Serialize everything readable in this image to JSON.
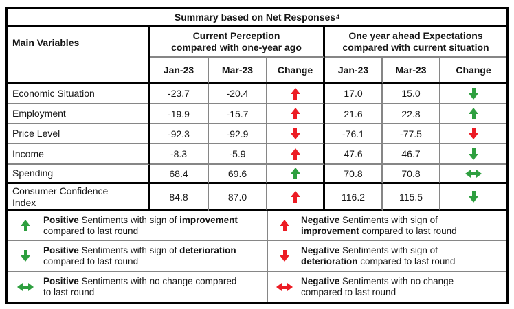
{
  "title": {
    "text": "Summary based on Net Responses",
    "superscript": "4"
  },
  "colors": {
    "positive_green": "#2e9f3f",
    "negative_red": "#ec1c24",
    "grid_gray": "#868686",
    "border_black": "#000000"
  },
  "header": {
    "main_variables": "Main Variables",
    "group1": {
      "line1": "Current Perception",
      "line2": "compared with one-year ago"
    },
    "group2": {
      "line1": "One year ahead Expectations",
      "line2": "compared with current situation"
    },
    "sub": [
      "Jan-23",
      "Mar-23",
      "Change"
    ]
  },
  "rows": [
    {
      "label": "Economic Situation",
      "p_jan": "-23.7",
      "p_mar": "-20.4",
      "p_change": {
        "dir": "up",
        "tone": "red"
      },
      "e_jan": "17.0",
      "e_mar": "15.0",
      "e_change": {
        "dir": "down",
        "tone": "green"
      }
    },
    {
      "label": "Employment",
      "p_jan": "-19.9",
      "p_mar": "-15.7",
      "p_change": {
        "dir": "up",
        "tone": "red"
      },
      "e_jan": "21.6",
      "e_mar": "22.8",
      "e_change": {
        "dir": "up",
        "tone": "green"
      }
    },
    {
      "label": "Price Level",
      "p_jan": "-92.3",
      "p_mar": "-92.9",
      "p_change": {
        "dir": "down",
        "tone": "red"
      },
      "e_jan": "-76.1",
      "e_mar": "-77.5",
      "e_change": {
        "dir": "down",
        "tone": "red"
      }
    },
    {
      "label": "Income",
      "p_jan": "-8.3",
      "p_mar": "-5.9",
      "p_change": {
        "dir": "up",
        "tone": "red"
      },
      "e_jan": "47.6",
      "e_mar": "46.7",
      "e_change": {
        "dir": "down",
        "tone": "green"
      }
    },
    {
      "label": "Spending",
      "p_jan": "68.4",
      "p_mar": "69.6",
      "p_change": {
        "dir": "up",
        "tone": "green"
      },
      "e_jan": "70.8",
      "e_mar": "70.8",
      "e_change": {
        "dir": "lr",
        "tone": "green"
      }
    },
    {
      "label": "Consumer Confidence\nIndex",
      "p_jan": "84.8",
      "p_mar": "87.0",
      "p_change": {
        "dir": "up",
        "tone": "red"
      },
      "e_jan": "116.2",
      "e_mar": "115.5",
      "e_change": {
        "dir": "down",
        "tone": "green"
      }
    }
  ],
  "legend": {
    "left": [
      {
        "arrow": {
          "dir": "up",
          "tone": "green"
        },
        "l1b": "Positive",
        "l1t": " Sentiments with sign of ",
        "l1b2": "improvement",
        "l2b": "",
        "l2t": "compared to last round"
      },
      {
        "arrow": {
          "dir": "down",
          "tone": "green"
        },
        "l1b": "Positive",
        "l1t": " Sentiments with sign of ",
        "l1b2": "deterioration",
        "l2b": "",
        "l2t": "compared to last round"
      },
      {
        "arrow": {
          "dir": "lr",
          "tone": "green"
        },
        "l1b": "Positive",
        "l1t": " Sentiments with no change compared",
        "l1b2": "",
        "l2b": "",
        "l2t": "to last round"
      }
    ],
    "right": [
      {
        "arrow": {
          "dir": "up",
          "tone": "red"
        },
        "l1b": "Negative",
        "l1t": " Sentiments with sign of",
        "l1b2": "",
        "l2b": "improvement",
        "l2t": " compared to last round"
      },
      {
        "arrow": {
          "dir": "down",
          "tone": "red"
        },
        "l1b": "Negative",
        "l1t": " Sentiments with sign of",
        "l1b2": "",
        "l2b": "deterioration",
        "l2t": " compared to last round"
      },
      {
        "arrow": {
          "dir": "lr",
          "tone": "red"
        },
        "l1b": "Negative",
        "l1t": " Sentiments with no change",
        "l1b2": "",
        "l2b": "",
        "l2t": "compared to last round"
      }
    ]
  }
}
